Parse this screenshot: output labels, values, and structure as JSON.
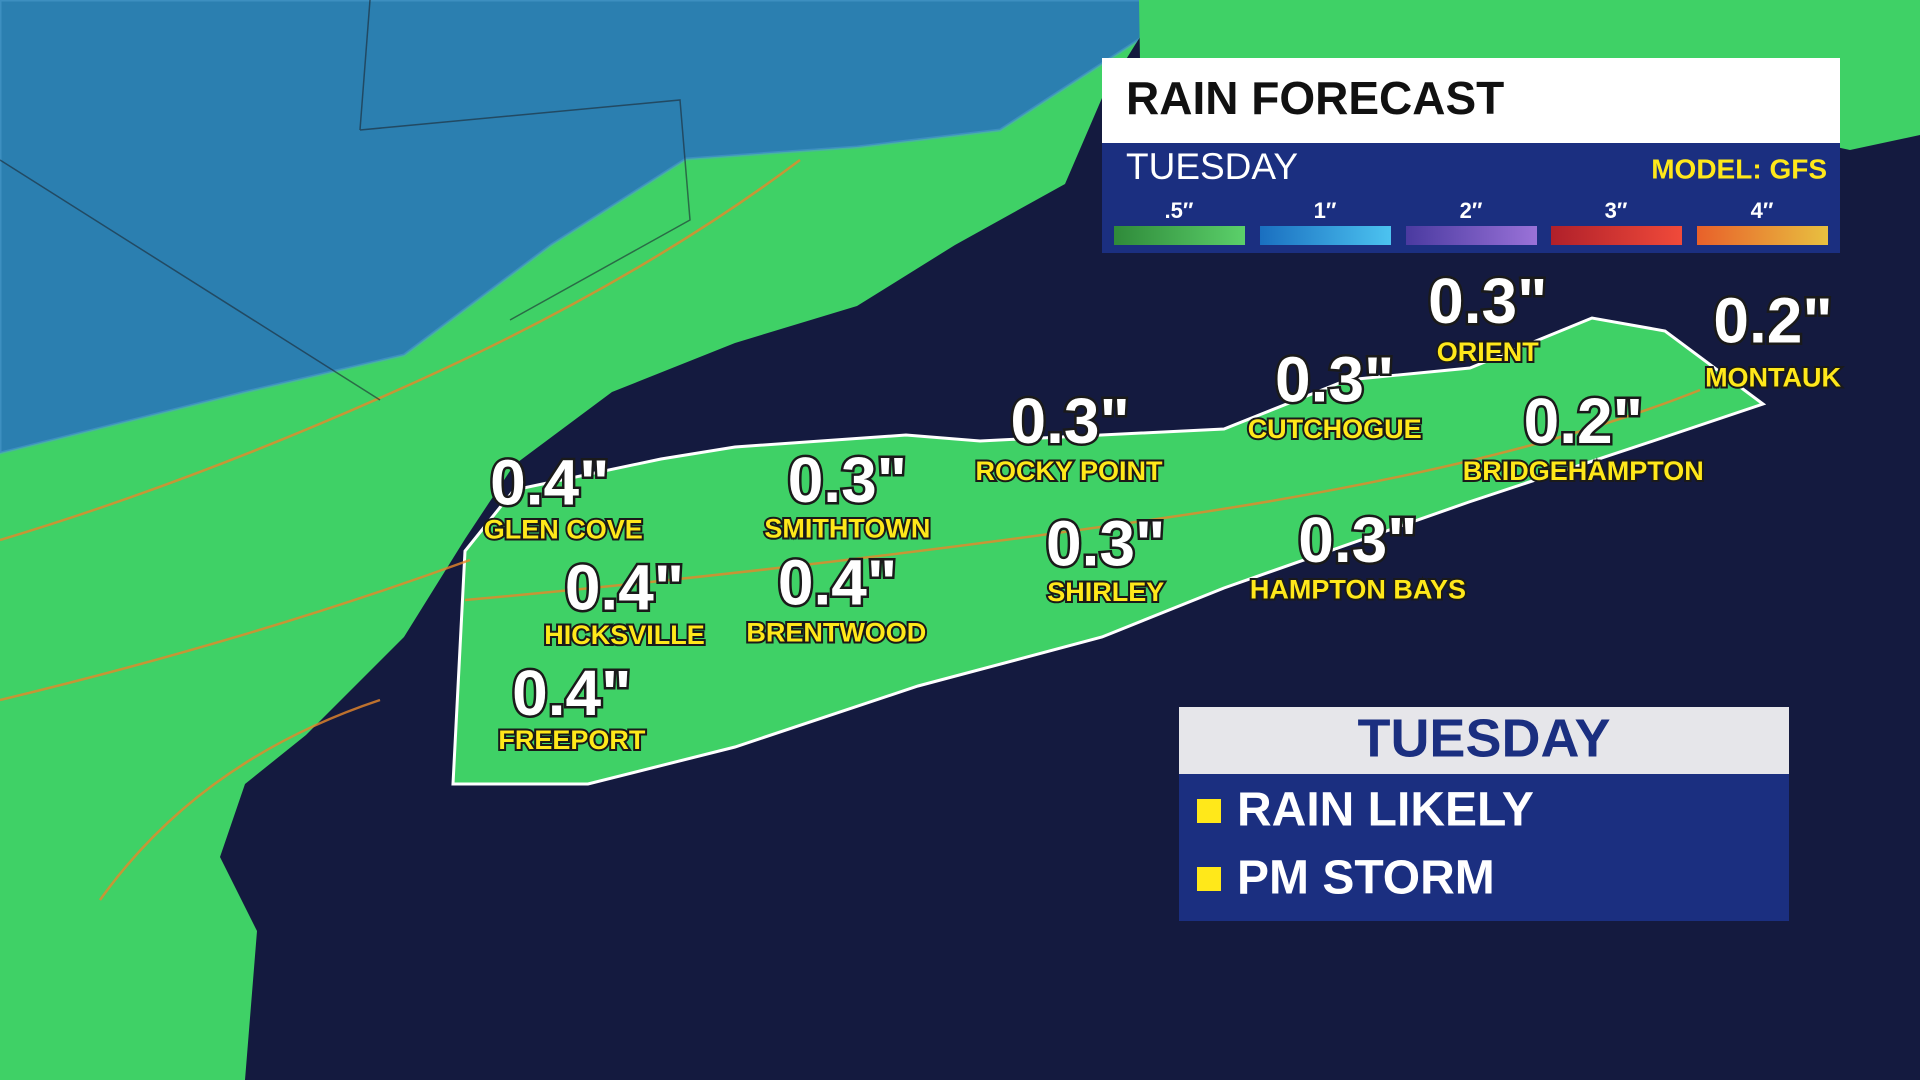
{
  "header": {
    "title": "RAIN FORECAST",
    "day": "TUESDAY",
    "model": "MODEL: GFS",
    "legend": [
      ".5″",
      "1″",
      "2″",
      "3″",
      "4″"
    ]
  },
  "locations": [
    {
      "value": "0.4\"",
      "name": "GLEN COVE"
    },
    {
      "value": "0.3\"",
      "name": "SMITHTOWN"
    },
    {
      "value": "0.3\"",
      "name": "ROCKY POINT"
    },
    {
      "value": "0.3\"",
      "name": "CUTCHOGUE"
    },
    {
      "value": "0.3\"",
      "name": "ORIENT"
    },
    {
      "value": "0.2\"",
      "name": "MONTAUK"
    },
    {
      "value": "0.2\"",
      "name": "BRIDGEHAMPTON"
    },
    {
      "value": "0.4\"",
      "name": "HICKSVILLE"
    },
    {
      "value": "0.4\"",
      "name": "BRENTWOOD"
    },
    {
      "value": "0.3\"",
      "name": "SHIRLEY"
    },
    {
      "value": "0.3\"",
      "name": "HAMPTON BAYS"
    },
    {
      "value": "0.4\"",
      "name": "FREEPORT"
    }
  ],
  "summary": {
    "title": "TUESDAY",
    "items": [
      "RAIN LIKELY",
      "PM STORM"
    ]
  }
}
